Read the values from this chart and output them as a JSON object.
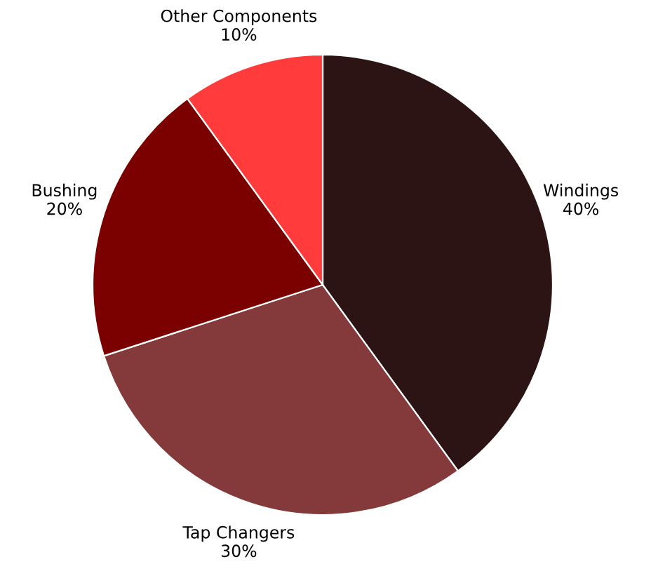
{
  "chart_data": {
    "type": "pie",
    "categories": [
      "Windings",
      "Tap Changers",
      "Bushing",
      "Other Components"
    ],
    "values": [
      40,
      30,
      20,
      10
    ],
    "value_labels": [
      "40%",
      "30%",
      "20%",
      "10%"
    ],
    "colors": [
      "#2c1414",
      "#843a3a",
      "#7b0000",
      "#ff3b3b"
    ],
    "legend": false
  }
}
